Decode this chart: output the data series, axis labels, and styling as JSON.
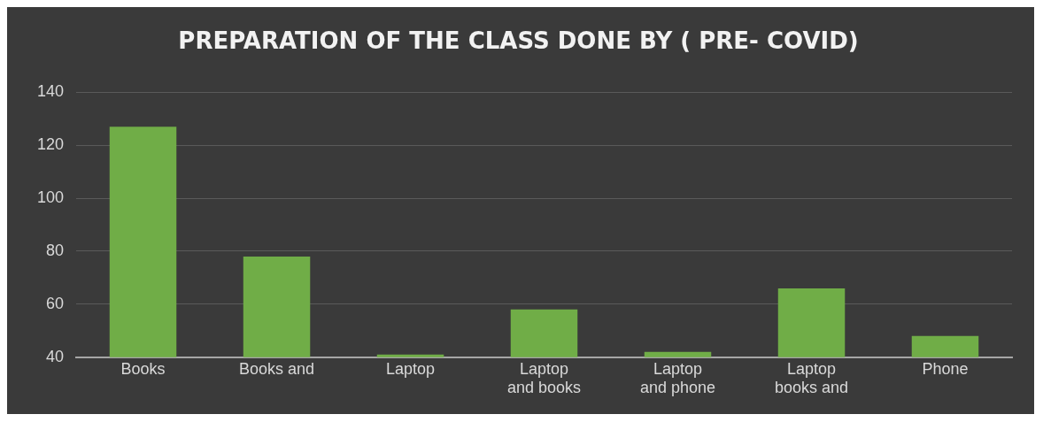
{
  "chart_data": {
    "type": "bar",
    "title": "PREPARATION OF THE CLASS DONE BY ( PRE- COVID)",
    "categories": [
      "Books",
      "Books and",
      "Laptop",
      "Laptop and books",
      "Laptop and phone",
      "Laptop books and",
      "Phone"
    ],
    "values": [
      127,
      78,
      41,
      58,
      42,
      66,
      48
    ],
    "color": "#70ad47",
    "ylim": [
      40,
      140
    ],
    "yticks": [
      40,
      60,
      80,
      100,
      120,
      140
    ],
    "grid": "y",
    "legend": false
  }
}
